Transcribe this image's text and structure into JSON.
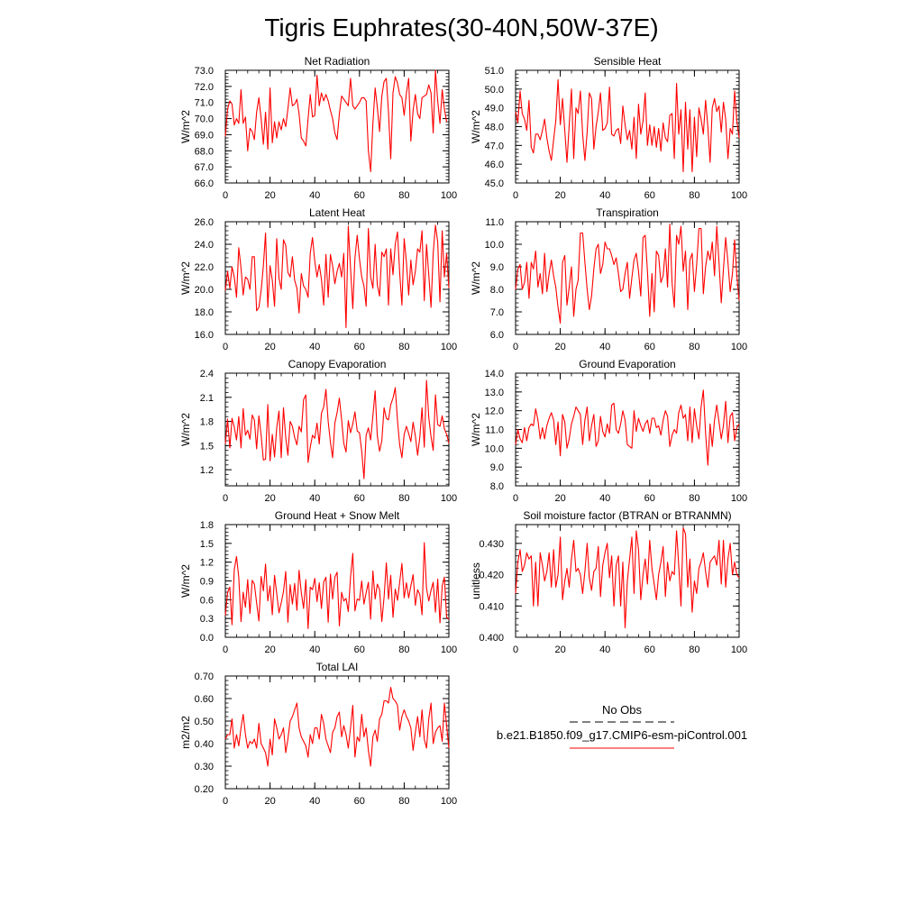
{
  "figure_title": "Tigris Euphrates(30-40N,50W-37E)",
  "legend": {
    "obs_label": "No Obs",
    "model_label": "b.e21.B1850.f09_g17.CMIP6-esm-piControl.001",
    "obs_color": "#000000",
    "model_color": "#ff0000"
  },
  "chart_data": [
    {
      "type": "line",
      "title": "Net Radiation",
      "ylabel": "W/m^2",
      "xlim": [
        0,
        100
      ],
      "ylim": [
        66.0,
        73.0
      ],
      "yticks": [
        66.0,
        67.0,
        68.0,
        69.0,
        70.0,
        71.0,
        72.0,
        73.0
      ],
      "ytick_labels": [
        "66.0",
        "67.0",
        "68.0",
        "69.0",
        "70.0",
        "71.0",
        "72.0",
        "73.0"
      ],
      "xticks": [
        0,
        20,
        40,
        60,
        80,
        100
      ],
      "xtick_labels": [
        "0",
        "20",
        "40",
        "60",
        "80",
        "100"
      ],
      "color": "#ff0000",
      "values": [
        68.9,
        70.6,
        71.1,
        70.9,
        69.6,
        70.0,
        69.7,
        71.8,
        69.7,
        70.1,
        68.0,
        69.4,
        69.2,
        68.7,
        70.4,
        71.3,
        70.0,
        68.4,
        70.4,
        68.1,
        71.9,
        68.5,
        69.8,
        68.8,
        69.8,
        69.3,
        70.0,
        69.5,
        70.6,
        71.9,
        70.8,
        70.9,
        71.2,
        70.3,
        68.8,
        68.6,
        68.3,
        70.0,
        71.5,
        70.1,
        70.2,
        72.7,
        70.8,
        71.6,
        71.1,
        71.5,
        71.1,
        70.5,
        70.0,
        69.1,
        68.7,
        70.3,
        71.4,
        71.2,
        71.0,
        70.8,
        72.5,
        70.8,
        70.6,
        70.8,
        71.0,
        71.3,
        71.3,
        71.1,
        68.0,
        66.7,
        69.7,
        71.9,
        70.7,
        69.2,
        71.4,
        72.3,
        72.5,
        70.4,
        67.5,
        71.6,
        72.6,
        72.2,
        71.5,
        71.3,
        70.2,
        71.6,
        72.5,
        68.6,
        70.5,
        71.5,
        70.3,
        70.0,
        71.3,
        71.4,
        71.5,
        72.1,
        71.6,
        69.1,
        73.0,
        71.1,
        69.7,
        71.8,
        70.6,
        69.8
      ]
    },
    {
      "type": "line",
      "title": "Sensible Heat",
      "ylabel": "W/m^2",
      "xlim": [
        0,
        100
      ],
      "ylim": [
        45.0,
        51.0
      ],
      "yticks": [
        45.0,
        46.0,
        47.0,
        48.0,
        49.0,
        50.0,
        51.0
      ],
      "ytick_labels": [
        "45.0",
        "46.0",
        "47.0",
        "48.0",
        "49.0",
        "50.0",
        "51.0"
      ],
      "xticks": [
        0,
        20,
        40,
        60,
        80,
        100
      ],
      "xtick_labels": [
        "0",
        "20",
        "40",
        "60",
        "80",
        "100"
      ],
      "color": "#ff0000",
      "values": [
        48.8,
        48.2,
        49.9,
        48.7,
        48.4,
        47.8,
        49.4,
        46.9,
        46.6,
        47.6,
        47.6,
        47.3,
        47.8,
        48.4,
        47.4,
        46.7,
        46.2,
        47.3,
        48.3,
        50.5,
        48.1,
        49.5,
        47.8,
        46.1,
        48.1,
        50.0,
        46.3,
        49.0,
        48.7,
        49.9,
        47.6,
        46.2,
        47.7,
        49.8,
        49.5,
        46.8,
        48.0,
        48.8,
        49.8,
        47.8,
        47.9,
        48.2,
        50.1,
        47.6,
        47.5,
        47.8,
        47.9,
        47.1,
        49.1,
        48.1,
        47.3,
        47.8,
        46.8,
        48.5,
        46.3,
        49.2,
        47.6,
        48.3,
        49.8,
        47.0,
        48.1,
        47.0,
        48.0,
        46.9,
        47.9,
        46.7,
        48.2,
        47.4,
        47.2,
        48.6,
        48.7,
        46.3,
        50.3,
        47.6,
        48.9,
        45.6,
        49.3,
        46.8,
        48.9,
        45.6,
        48.5,
        46.4,
        49.0,
        48.4,
        47.6,
        49.4,
        48.0,
        46.1,
        49.0,
        49.5,
        48.8,
        49.1,
        47.7,
        49.3,
        48.4,
        46.3,
        47.9,
        47.6,
        49.9,
        48.3,
        47.4
      ]
    },
    {
      "type": "line",
      "title": "Latent Heat",
      "ylabel": "W/m^2",
      "xlim": [
        0,
        100
      ],
      "ylim": [
        16.0,
        26.0
      ],
      "yticks": [
        16.0,
        18.0,
        20.0,
        22.0,
        24.0,
        26.0
      ],
      "ytick_labels": [
        "16.0",
        "18.0",
        "20.0",
        "22.0",
        "24.0",
        "26.0"
      ],
      "xticks": [
        0,
        20,
        40,
        60,
        80,
        100
      ],
      "xtick_labels": [
        "0",
        "20",
        "40",
        "60",
        "80",
        "100"
      ],
      "color": "#ff0000",
      "values": [
        19.9,
        21.6,
        20.1,
        22.0,
        21.1,
        19.3,
        23.7,
        21.9,
        19.5,
        21.1,
        20.9,
        20.0,
        22.9,
        22.9,
        18.1,
        18.4,
        19.9,
        22.1,
        25.0,
        18.4,
        22.1,
        20.8,
        18.5,
        24.5,
        21.0,
        20.0,
        24.4,
        23.9,
        21.5,
        21.1,
        22.9,
        20.8,
        20.1,
        17.9,
        21.4,
        20.3,
        20.0,
        19.3,
        23.2,
        24.6,
        22.5,
        21.1,
        22.2,
        20.9,
        18.6,
        23.1,
        19.3,
        23.1,
        22.1,
        20.5,
        21.6,
        22.3,
        21.1,
        23.2,
        16.6,
        25.6,
        21.9,
        18.3,
        22.8,
        24.8,
        22.7,
        21.1,
        20.3,
        18.5,
        25.4,
        21.1,
        20.1,
        24.0,
        20.4,
        19.4,
        23.3,
        22.9,
        23.6,
        18.6,
        23.6,
        21.3,
        24.0,
        25.1,
        21.5,
        18.6,
        24.5,
        22.4,
        19.5,
        22.6,
        20.4,
        21.6,
        23.6,
        23.3,
        25.2,
        19.0,
        24.0,
        21.3,
        18.4,
        23.2,
        25.7,
        24.2,
        18.9,
        25.2,
        21.1,
        23.2,
        20.1
      ]
    },
    {
      "type": "line",
      "title": "Transpiration",
      "ylabel": "W/m^2",
      "xlim": [
        0,
        100
      ],
      "ylim": [
        6.0,
        11.0
      ],
      "yticks": [
        6.0,
        7.0,
        8.0,
        9.0,
        10.0,
        11.0
      ],
      "ytick_labels": [
        "6.0",
        "7.0",
        "8.0",
        "9.0",
        "10.0",
        "11.0"
      ],
      "xticks": [
        0,
        20,
        40,
        60,
        80,
        100
      ],
      "xtick_labels": [
        "0",
        "20",
        "40",
        "60",
        "80",
        "100"
      ],
      "color": "#ff0000",
      "values": [
        8.0,
        8.9,
        9.1,
        8.0,
        8.3,
        9.2,
        7.6,
        9.2,
        8.9,
        9.7,
        8.1,
        8.7,
        7.8,
        9.6,
        7.9,
        8.7,
        9.3,
        8.6,
        8.1,
        7.2,
        6.5,
        9.2,
        9.5,
        7.3,
        8.1,
        9.0,
        6.8,
        8.0,
        8.4,
        10.5,
        10.5,
        9.2,
        8.0,
        7.1,
        7.7,
        8.9,
        9.8,
        10.0,
        8.7,
        9.1,
        10.1,
        9.8,
        9.8,
        9.5,
        9.1,
        9.4,
        8.7,
        7.9,
        8.0,
        8.7,
        9.2,
        7.6,
        8.5,
        9.3,
        9.6,
        8.8,
        7.7,
        10.3,
        10.4,
        8.8,
        6.8,
        8.7,
        7.0,
        9.7,
        9.5,
        8.3,
        8.6,
        9.8,
        8.1,
        10.9,
        8.3,
        7.2,
        10.4,
        10.0,
        10.8,
        8.8,
        9.7,
        7.1,
        9.3,
        9.6,
        7.9,
        9.1,
        10.7,
        10.7,
        7.8,
        9.0,
        9.7,
        9.3,
        10.1,
        8.6,
        10.8,
        9.2,
        7.4,
        8.9,
        10.3,
        9.2,
        7.9,
        8.7,
        10.2,
        8.6,
        7.5
      ]
    },
    {
      "type": "line",
      "title": "Canopy Evaporation",
      "ylabel": "W/m^2",
      "xlim": [
        0,
        100
      ],
      "ylim": [
        1.0,
        2.4
      ],
      "yticks": [
        1.2,
        1.5,
        1.8,
        2.1,
        2.4
      ],
      "ytick_labels": [
        "1.2",
        "1.5",
        "1.8",
        "2.1",
        "2.4"
      ],
      "xticks": [
        0,
        20,
        40,
        60,
        80,
        100
      ],
      "xtick_labels": [
        "0",
        "20",
        "40",
        "60",
        "80",
        "100"
      ],
      "color": "#ff0000",
      "values": [
        1.52,
        1.83,
        1.47,
        1.84,
        1.73,
        1.57,
        1.86,
        1.47,
        1.96,
        1.63,
        1.69,
        1.58,
        1.88,
        1.82,
        1.46,
        1.87,
        1.63,
        1.32,
        1.33,
        2.01,
        1.31,
        1.64,
        1.36,
        1.72,
        1.93,
        1.35,
        1.97,
        1.6,
        1.38,
        1.8,
        1.74,
        1.6,
        1.51,
        1.74,
        1.67,
        2.07,
        2.13,
        1.29,
        1.48,
        1.63,
        1.59,
        1.78,
        1.52,
        1.9,
        1.98,
        2.2,
        1.8,
        1.54,
        1.35,
        1.78,
        1.91,
        2.09,
        1.82,
        1.53,
        1.42,
        1.81,
        1.66,
        1.77,
        1.92,
        1.68,
        1.66,
        1.43,
        1.09,
        1.63,
        1.72,
        1.57,
        1.87,
        2.18,
        1.62,
        1.43,
        1.56,
        1.97,
        1.84,
        1.82,
        2.01,
        2.09,
        2.22,
        1.81,
        1.51,
        1.35,
        1.64,
        1.74,
        1.65,
        1.55,
        1.79,
        1.62,
        1.38,
        1.61,
        1.97,
        1.48,
        2.31,
        1.85,
        1.61,
        1.44,
        2.13,
        1.76,
        1.74,
        1.87,
        1.71,
        1.64,
        1.53
      ]
    },
    {
      "type": "line",
      "title": "Ground Evaporation",
      "ylabel": "W/m^2",
      "xlim": [
        0,
        100
      ],
      "ylim": [
        8.0,
        14.0
      ],
      "yticks": [
        8.0,
        9.0,
        10.0,
        11.0,
        12.0,
        13.0,
        14.0
      ],
      "ytick_labels": [
        "8.0",
        "9.0",
        "10.0",
        "11.0",
        "12.0",
        "13.0",
        "14.0"
      ],
      "xticks": [
        0,
        20,
        40,
        60,
        80,
        100
      ],
      "xtick_labels": [
        "0",
        "20",
        "40",
        "60",
        "80",
        "100"
      ],
      "color": "#ff0000",
      "values": [
        10.2,
        11.0,
        10.5,
        10.3,
        11.1,
        10.4,
        11.1,
        11.3,
        11.2,
        12.1,
        11.5,
        10.5,
        11.1,
        10.5,
        11.2,
        11.6,
        11.9,
        11.5,
        10.2,
        11.4,
        9.6,
        11.8,
        11.4,
        10.0,
        10.5,
        11.3,
        11.7,
        12.2,
        12.0,
        11.8,
        10.2,
        11.5,
        12.2,
        10.4,
        11.2,
        11.8,
        10.1,
        10.4,
        11.7,
        10.9,
        10.6,
        11.3,
        10.8,
        12.3,
        12.4,
        11.0,
        10.8,
        11.3,
        12.0,
        11.5,
        10.2,
        10.1,
        10.0,
        12.0,
        10.9,
        11.6,
        11.2,
        10.9,
        11.3,
        11.5,
        10.8,
        11.6,
        11.6,
        11.1,
        11.2,
        10.7,
        11.5,
        12.0,
        11.7,
        10.1,
        10.7,
        11.0,
        10.8,
        11.9,
        12.3,
        11.6,
        11.8,
        10.4,
        12.2,
        10.3,
        12.1,
        11.2,
        10.5,
        12.2,
        13.1,
        10.8,
        9.1,
        11.3,
        10.1,
        11.5,
        12.3,
        11.4,
        10.5,
        11.2,
        12.5,
        10.3,
        11.7,
        11.9,
        10.4,
        11.1,
        11.3
      ]
    },
    {
      "type": "line",
      "title": "Ground Heat + Snow Melt",
      "ylabel": "W/m^2",
      "xlim": [
        0,
        100
      ],
      "ylim": [
        0.0,
        1.8
      ],
      "yticks": [
        0.0,
        0.3,
        0.6,
        0.9,
        1.2,
        1.5,
        1.8
      ],
      "ytick_labels": [
        "0.0",
        "0.3",
        "0.6",
        "0.9",
        "1.2",
        "1.5",
        "1.8"
      ],
      "xticks": [
        0,
        20,
        40,
        60,
        80,
        100
      ],
      "xtick_labels": [
        "0",
        "20",
        "40",
        "60",
        "80",
        "100"
      ],
      "color": "#ff0000",
      "values": [
        0.35,
        0.72,
        0.8,
        0.2,
        1.08,
        1.29,
        0.96,
        0.25,
        0.72,
        0.48,
        0.92,
        0.38,
        0.91,
        0.85,
        0.55,
        0.26,
        0.97,
        0.74,
        1.17,
        0.58,
        0.82,
        0.36,
        0.99,
        0.7,
        0.39,
        0.55,
        0.73,
        1.05,
        0.24,
        0.84,
        0.53,
        0.86,
        0.43,
        1.07,
        0.71,
        0.46,
        0.92,
        0.14,
        0.8,
        0.76,
        0.94,
        0.57,
        0.87,
        0.46,
        0.88,
        0.96,
        0.24,
        1.01,
        0.61,
        0.96,
        1.04,
        0.18,
        0.72,
        0.58,
        0.62,
        0.41,
        0.96,
        1.34,
        0.42,
        0.61,
        0.59,
        0.9,
        0.53,
        0.71,
        0.88,
        0.29,
        1.06,
        0.61,
        0.85,
        0.76,
        0.25,
        0.64,
        1.19,
        0.61,
        0.99,
        0.32,
        0.77,
        0.59,
        0.88,
        1.18,
        0.63,
        0.87,
        0.63,
        0.82,
        1.0,
        0.51,
        0.76,
        0.68,
        0.36,
        1.51,
        0.78,
        0.58,
        0.75,
        0.88,
        0.4,
        0.93,
        0.23,
        0.82,
        0.96,
        0.32,
        0.29
      ]
    },
    {
      "type": "line",
      "title": "Soil moisture factor (BTRAN or BTRANMN)",
      "ylabel": "unitless",
      "xlim": [
        0,
        100
      ],
      "ylim": [
        0.4,
        0.436
      ],
      "yticks": [
        0.4,
        0.41,
        0.42,
        0.43
      ],
      "ytick_labels": [
        "0.400",
        "0.410",
        "0.420",
        "0.430"
      ],
      "xticks": [
        0,
        20,
        40,
        60,
        80,
        100
      ],
      "xtick_labels": [
        "0",
        "20",
        "40",
        "60",
        "80",
        "100"
      ],
      "color": "#ff0000",
      "values": [
        0.414,
        0.424,
        0.428,
        0.421,
        0.423,
        0.427,
        0.425,
        0.426,
        0.41,
        0.424,
        0.41,
        0.427,
        0.423,
        0.418,
        0.421,
        0.427,
        0.416,
        0.428,
        0.416,
        0.42,
        0.432,
        0.412,
        0.418,
        0.422,
        0.416,
        0.425,
        0.431,
        0.421,
        0.422,
        0.42,
        0.414,
        0.421,
        0.43,
        0.419,
        0.415,
        0.421,
        0.422,
        0.429,
        0.413,
        0.423,
        0.427,
        0.43,
        0.419,
        0.426,
        0.41,
        0.423,
        0.426,
        0.41,
        0.424,
        0.403,
        0.418,
        0.425,
        0.432,
        0.414,
        0.434,
        0.428,
        0.412,
        0.42,
        0.425,
        0.417,
        0.431,
        0.422,
        0.417,
        0.412,
        0.42,
        0.424,
        0.429,
        0.413,
        0.424,
        0.418,
        0.421,
        0.42,
        0.434,
        0.423,
        0.41,
        0.435,
        0.433,
        0.416,
        0.425,
        0.408,
        0.418,
        0.414,
        0.422,
        0.424,
        0.427,
        0.421,
        0.416,
        0.424,
        0.425,
        0.426,
        0.423,
        0.431,
        0.417,
        0.431,
        0.416,
        0.425,
        0.43,
        0.42,
        0.424,
        0.42,
        0.419
      ]
    },
    {
      "type": "line",
      "title": "Total LAI",
      "ylabel": "m2/m2",
      "xlim": [
        0,
        100
      ],
      "ylim": [
        0.2,
        0.7
      ],
      "yticks": [
        0.2,
        0.3,
        0.4,
        0.5,
        0.6,
        0.7
      ],
      "ytick_labels": [
        "0.20",
        "0.30",
        "0.40",
        "0.50",
        "0.60",
        "0.70"
      ],
      "xticks": [
        0,
        20,
        40,
        60,
        80,
        100
      ],
      "xtick_labels": [
        "0",
        "20",
        "40",
        "60",
        "80",
        "100"
      ],
      "color": "#ff0000",
      "values": [
        0.42,
        0.44,
        0.44,
        0.51,
        0.38,
        0.44,
        0.39,
        0.47,
        0.53,
        0.44,
        0.38,
        0.41,
        0.4,
        0.42,
        0.38,
        0.49,
        0.4,
        0.38,
        0.36,
        0.3,
        0.42,
        0.35,
        0.51,
        0.47,
        0.42,
        0.44,
        0.47,
        0.36,
        0.42,
        0.5,
        0.52,
        0.55,
        0.58,
        0.47,
        0.43,
        0.41,
        0.39,
        0.34,
        0.44,
        0.4,
        0.47,
        0.47,
        0.42,
        0.53,
        0.49,
        0.42,
        0.39,
        0.36,
        0.45,
        0.47,
        0.52,
        0.54,
        0.43,
        0.48,
        0.44,
        0.38,
        0.47,
        0.57,
        0.34,
        0.43,
        0.41,
        0.53,
        0.43,
        0.47,
        0.37,
        0.3,
        0.43,
        0.46,
        0.41,
        0.51,
        0.53,
        0.59,
        0.59,
        0.58,
        0.65,
        0.6,
        0.59,
        0.57,
        0.46,
        0.52,
        0.55,
        0.52,
        0.5,
        0.47,
        0.37,
        0.45,
        0.52,
        0.43,
        0.55,
        0.42,
        0.38,
        0.51,
        0.58,
        0.4,
        0.45,
        0.47,
        0.48,
        0.41,
        0.58,
        0.48,
        0.38
      ]
    }
  ]
}
